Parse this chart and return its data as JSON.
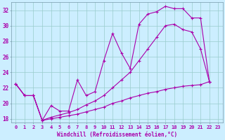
{
  "xlabel": "Windchill (Refroidissement éolien,°C)",
  "bg_color": "#cceeff",
  "line_color": "#aa00aa",
  "grid_color": "#99cccc",
  "xlim": [
    -0.5,
    23.5
  ],
  "ylim": [
    17.5,
    33.0
  ],
  "xticks": [
    0,
    1,
    2,
    3,
    4,
    5,
    6,
    7,
    8,
    9,
    10,
    11,
    12,
    13,
    14,
    15,
    16,
    17,
    18,
    19,
    20,
    21,
    22,
    23
  ],
  "yticks": [
    18,
    20,
    22,
    24,
    26,
    28,
    30,
    32
  ],
  "line1_x": [
    0,
    1,
    2,
    3,
    4,
    5,
    6,
    7,
    8,
    9,
    10,
    11,
    12,
    13,
    14,
    15,
    16,
    17,
    18,
    19,
    20,
    21,
    22
  ],
  "line1_y": [
    22.5,
    21.0,
    21.0,
    17.8,
    19.7,
    19.0,
    19.0,
    23.0,
    21.0,
    21.5,
    25.5,
    29.0,
    26.5,
    24.5,
    30.2,
    31.5,
    31.8,
    32.5,
    32.2,
    32.2,
    31.0,
    31.0,
    22.8
  ],
  "line2_x": [
    0,
    1,
    2,
    3,
    4,
    5,
    6,
    7,
    8,
    9,
    10,
    11,
    12,
    13,
    14,
    15,
    16,
    17,
    18,
    19,
    20,
    21,
    22
  ],
  "line2_y": [
    22.5,
    21.0,
    21.0,
    17.8,
    18.2,
    18.5,
    18.8,
    19.2,
    19.8,
    20.3,
    21.0,
    22.0,
    23.0,
    24.0,
    25.5,
    27.0,
    28.5,
    30.0,
    30.2,
    29.5,
    29.2,
    27.0,
    22.8
  ],
  "line3_x": [
    0,
    1,
    2,
    3,
    4,
    5,
    6,
    7,
    8,
    9,
    10,
    11,
    12,
    13,
    14,
    15,
    16,
    17,
    18,
    19,
    20,
    21,
    22
  ],
  "line3_y": [
    22.5,
    21.0,
    21.0,
    17.8,
    18.0,
    18.2,
    18.4,
    18.6,
    18.9,
    19.2,
    19.5,
    20.0,
    20.3,
    20.7,
    21.0,
    21.3,
    21.5,
    21.8,
    22.0,
    22.2,
    22.3,
    22.4,
    22.8
  ]
}
